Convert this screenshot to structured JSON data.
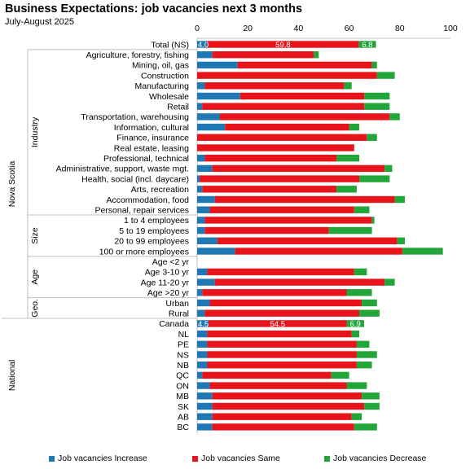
{
  "chart_data": {
    "type": "bar",
    "orientation": "horizontal",
    "stacked": true,
    "title": "Business Expectations: job vacancies next 3 months",
    "subtitle": "July-August 2025",
    "xlim": [
      0,
      100
    ],
    "xticks": [
      "0",
      "20",
      "40",
      "60",
      "80",
      "100"
    ],
    "grid": false,
    "legend_position": "bottom",
    "colors": {
      "increase": "#1f77b4",
      "same": "#e8141b",
      "decrease": "#22a63a"
    },
    "groups": [
      {
        "outer": "Nova Scotia",
        "inner": "Industry",
        "from": 1,
        "to": 16
      },
      {
        "outer": "Nova Scotia",
        "inner": "Size",
        "from": 17,
        "to": 20
      },
      {
        "outer": "Nova Scotia",
        "inner": "Age",
        "from": 21,
        "to": 24
      },
      {
        "outer": "Nova Scotia",
        "inner": "Geo.",
        "from": 25,
        "to": 26
      },
      {
        "outer": "National",
        "inner": "",
        "from": 27,
        "to": 37
      }
    ],
    "categories": [
      "Total (NS)",
      "Agriculture, forestry, fishing",
      "Mining, oil, gas",
      "Construction",
      "Manufacturing",
      "Wholesale",
      "Retail",
      "Transportation, warehousing",
      "Information, cultural",
      "Finance, insurance",
      "Real estate, leasing",
      "Professional, technical",
      "Administrative, support, waste mgt.",
      "Health, social (incl. daycare)",
      "Arts, recreation",
      "Accommodation, food",
      "Personal, repair services",
      "1 to 4 employees",
      "5 to 19 employees",
      "20 to 99 employees",
      "100 or more employees",
      "Age <2 yr",
      "Age 3-10 yr",
      "Age 11-20 yr",
      "Age >20 yr",
      "Urban",
      "Rural",
      "Canada",
      "NL",
      "PE",
      "NS",
      "NB",
      "QC",
      "ON",
      "MB",
      "SK",
      "AB",
      "BC"
    ],
    "series": [
      {
        "name": "Job vacancies Increase",
        "values": [
          4.0,
          6,
          16,
          0,
          3,
          17,
          2,
          9,
          11,
          0,
          0,
          3,
          6,
          1,
          2,
          7,
          5,
          3,
          3,
          8,
          15,
          0,
          4,
          7,
          2,
          5,
          3,
          4.5,
          4,
          4,
          4,
          4,
          2,
          5,
          6,
          6,
          6,
          6
        ]
      },
      {
        "name": "Job vacancies Same",
        "values": [
          59.8,
          40,
          53,
          71,
          55,
          49,
          64,
          67,
          49,
          67,
          62,
          52,
          68,
          63,
          53,
          71,
          57,
          66,
          49,
          71,
          66,
          0,
          58,
          67,
          57,
          60,
          61,
          54.5,
          57,
          59,
          59,
          59,
          51,
          54,
          59,
          60,
          55,
          56
        ]
      },
      {
        "name": "Job vacancies Decrease",
        "values": [
          6.8,
          2,
          2,
          7,
          3,
          10,
          10,
          4,
          4,
          4,
          0,
          9,
          3,
          12,
          8,
          4,
          6,
          1,
          17,
          3,
          16,
          0,
          5,
          4,
          10,
          6,
          8,
          6.9,
          3,
          5,
          8,
          6,
          7,
          8,
          7,
          6,
          4,
          9
        ]
      }
    ],
    "data_labels": [
      {
        "category": "Total (NS)",
        "values": [
          "4.0",
          "59.8",
          "6.8"
        ]
      },
      {
        "category": "Canada",
        "values": [
          "4.5",
          "54.5",
          "6.9"
        ]
      }
    ]
  }
}
